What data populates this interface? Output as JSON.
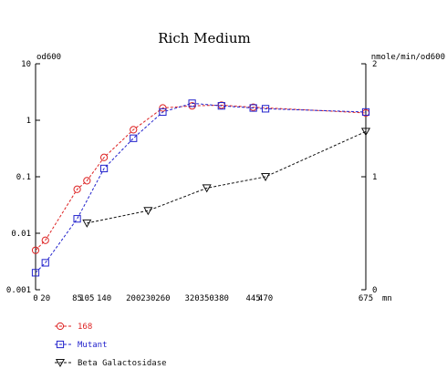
{
  "chart_data": {
    "type": "line",
    "title": "Rich Medium",
    "left_axis_label": "od600",
    "right_axis_label": "nmole/min/od600",
    "x_unit": "mn",
    "left_axis": {
      "scale": "log",
      "ylim": [
        0.001,
        10
      ],
      "tick_labels": [
        "10",
        "1",
        "0.1",
        "0.01",
        "0.001"
      ]
    },
    "right_axis": {
      "scale": "linear",
      "ylim": [
        0,
        2
      ],
      "tick_labels": [
        "2",
        "1",
        "0"
      ]
    },
    "x_axis": {
      "xlim": [
        0,
        675
      ],
      "ticks": [
        0,
        20,
        85,
        105,
        140,
        200,
        230,
        260,
        320,
        350,
        380,
        445,
        470,
        675
      ],
      "tick_labels": [
        "0",
        "20",
        "85",
        "105",
        "140",
        "200",
        "230",
        "260",
        "320",
        "350",
        "380",
        "445",
        "470",
        "675"
      ]
    },
    "series": [
      {
        "name": "168",
        "color": "#dd2222",
        "marker": "circle",
        "axis": "left",
        "points": [
          [
            0,
            0.005
          ],
          [
            20,
            0.0075
          ],
          [
            85,
            0.06
          ],
          [
            105,
            0.085
          ],
          [
            140,
            0.22
          ],
          [
            200,
            0.68
          ],
          [
            260,
            1.65
          ],
          [
            320,
            1.8
          ],
          [
            380,
            1.85
          ],
          [
            445,
            1.7
          ],
          [
            675,
            1.35
          ]
        ]
      },
      {
        "name": "Mutant",
        "color": "#2222cc",
        "marker": "square",
        "axis": "left",
        "points": [
          [
            0,
            0.002
          ],
          [
            20,
            0.003
          ],
          [
            85,
            0.018
          ],
          [
            140,
            0.14
          ],
          [
            200,
            0.48
          ],
          [
            260,
            1.4
          ],
          [
            320,
            2.0
          ],
          [
            380,
            1.8
          ],
          [
            445,
            1.65
          ],
          [
            470,
            1.6
          ],
          [
            675,
            1.4
          ]
        ]
      },
      {
        "name": "Beta Galactosidase",
        "color": "#111111",
        "marker": "triangle-down",
        "axis": "right",
        "points": [
          [
            105,
            0.59
          ],
          [
            230,
            0.7
          ],
          [
            350,
            0.9
          ],
          [
            470,
            1.0
          ],
          [
            675,
            1.4
          ]
        ]
      }
    ],
    "grid": false,
    "legend_position": "bottom-left"
  }
}
